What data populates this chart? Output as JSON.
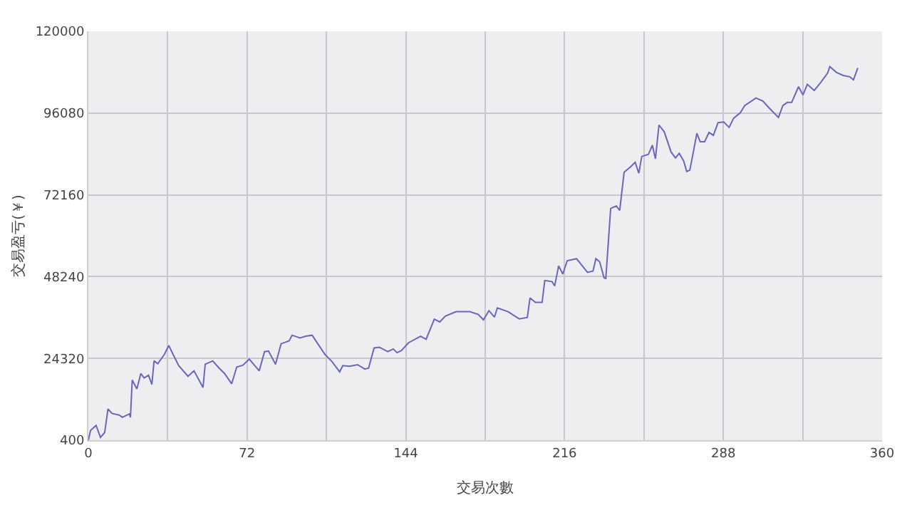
{
  "chart_data": {
    "type": "line",
    "xlabel": "交易次數",
    "ylabel": "交易盈亏(￥)",
    "xlim": [
      0,
      360
    ],
    "xticks": [
      0,
      {
        "value": 36,
        "label": null
      },
      72,
      {
        "value": 108,
        "label": null
      },
      144,
      {
        "value": 180,
        "label": null
      },
      216,
      {
        "value": 252,
        "label": null
      },
      288,
      {
        "value": 324,
        "label": null
      },
      360
    ],
    "ylim": [
      400,
      120000
    ],
    "yticks": [
      400,
      24320,
      48240,
      72160,
      96080,
      120000
    ],
    "grid": true,
    "marker": "none",
    "line_style": "solid",
    "series": [
      {
        "color": "#6a66c0",
        "x": [
          0,
          1,
          3.5,
          5.5,
          7.4,
          8.9,
          10.7,
          14,
          15.4,
          18.6,
          19.1,
          19.9,
          22,
          23.8,
          25.3,
          27.3,
          28.8,
          29.8,
          31.5,
          34.5,
          36.5,
          38.5,
          41,
          45.2,
          47.9,
          52,
          53,
          56.4,
          59.3,
          61.8,
          65,
          67.3,
          70,
          73,
          77.5,
          79.9,
          81.7,
          84.9,
          87.4,
          91.1,
          92.4,
          96,
          98.6,
          101.5,
          107.3,
          110.5,
          114,
          115.4,
          118.4,
          122.1,
          125.4,
          127.1,
          129.6,
          132,
          135.8,
          138.3,
          140,
          142,
          145.2,
          150.7,
          153.2,
          156.9,
          159.4,
          161.9,
          166.8,
          173,
          176.8,
          179.2,
          181.7,
          184.2,
          185.5,
          190.4,
          195.4,
          199.1,
          200.3,
          202.8,
          205.8,
          207,
          210.3,
          211.5,
          213.3,
          215.2,
          217.2,
          221.4,
          226.4,
          228.9,
          230.2,
          231.9,
          233.9,
          234.7,
          236.9,
          239.5,
          241,
          243,
          246,
          248,
          249.7,
          251,
          254,
          255.8,
          257.2,
          258.8,
          261.2,
          264.3,
          266.3,
          268,
          270,
          271.4,
          272.8,
          274.4,
          276,
          277.5,
          279.5,
          281.5,
          283.5,
          285.6,
          288.2,
          290.6,
          292.7,
          295.7,
          297.7,
          299.8,
          302.8,
          305.9,
          308.9,
          313,
          315,
          317,
          319,
          322.1,
          324.1,
          326.1,
          329.2,
          332.2,
          335.3,
          336.3,
          339.3,
          342.4,
          345.4,
          347,
          349
        ],
        "values": [
          400,
          3280,
          4720,
          1200,
          2640,
          9520,
          8240,
          7760,
          7100,
          8100,
          7100,
          18000,
          15400,
          19900,
          18600,
          19400,
          16700,
          23600,
          22800,
          25500,
          28100,
          25400,
          22200,
          19100,
          20700,
          15800,
          22600,
          23600,
          21500,
          19900,
          16900,
          21800,
          22300,
          24100,
          20700,
          26300,
          26500,
          22600,
          28600,
          29500,
          31100,
          30300,
          30800,
          31100,
          25500,
          23400,
          20400,
          22200,
          22000,
          22500,
          21200,
          21500,
          27400,
          27600,
          26300,
          27100,
          26000,
          26600,
          28900,
          30800,
          29900,
          35800,
          35000,
          36700,
          38000,
          38000,
          37200,
          35600,
          38300,
          36400,
          39100,
          38000,
          35900,
          36300,
          42000,
          40700,
          40700,
          47100,
          46800,
          45500,
          51400,
          49000,
          52900,
          53500,
          49500,
          49900,
          53500,
          52600,
          47900,
          47700,
          68200,
          68900,
          67600,
          78800,
          80400,
          81700,
          78500,
          83400,
          84000,
          86700,
          82700,
          92600,
          90600,
          84700,
          83000,
          84300,
          82100,
          79000,
          79400,
          84700,
          90200,
          87700,
          87700,
          90400,
          89600,
          93300,
          93500,
          91900,
          94600,
          96200,
          98300,
          99200,
          100500,
          99600,
          97500,
          94800,
          98300,
          99200,
          99200,
          103800,
          101400,
          104500,
          102700,
          105100,
          107800,
          109700,
          108000,
          107100,
          106700,
          105800,
          109300
        ]
      }
    ]
  }
}
